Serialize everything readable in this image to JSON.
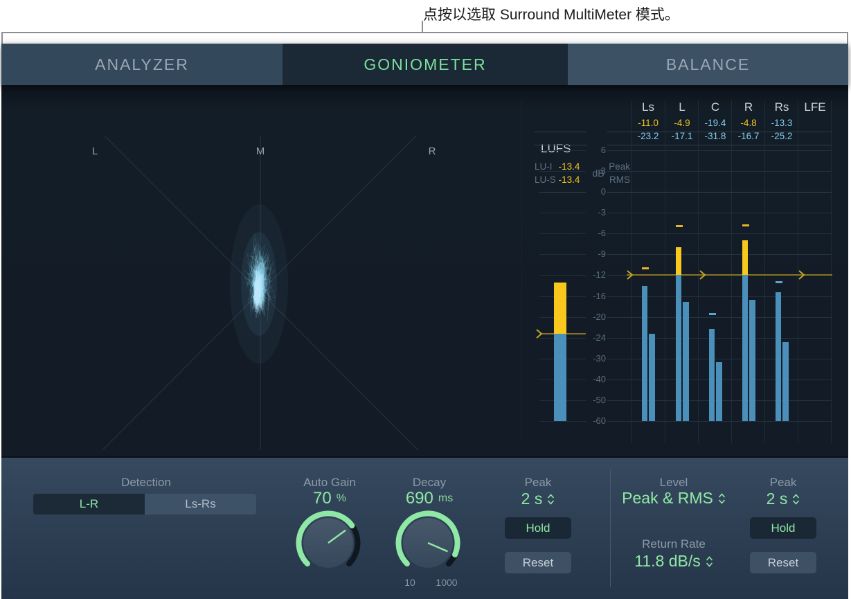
{
  "tooltip": {
    "text": "点按以选取 Surround MultiMeter 模式。"
  },
  "tabs": [
    {
      "label": "ANALYZER",
      "active": false
    },
    {
      "label": "GONIOMETER",
      "active": true
    },
    {
      "label": "BALANCE",
      "active": false
    }
  ],
  "goniometer": {
    "labels": [
      "L",
      "M",
      "R"
    ]
  },
  "lufs": {
    "title": "LUFS",
    "unit": "dB",
    "rows": [
      {
        "label": "LU-I",
        "value": "-13.4"
      },
      {
        "label": "LU-S",
        "value": "-13.4"
      }
    ],
    "bar": {
      "top_db": -13.4,
      "split_db": -23.3,
      "threshold_db": -23.3
    }
  },
  "meters": {
    "row_labels": [
      "Peak",
      "RMS"
    ],
    "target_db": -12,
    "ticks": [
      6,
      3,
      0,
      -3,
      -6,
      -9,
      -12,
      -16,
      -20,
      -24,
      -30,
      -40,
      -50,
      -60
    ],
    "channels": [
      {
        "name": "Ls",
        "peak": "-11.0",
        "rms": "-23.2",
        "bars": true,
        "bar_peak_db": -14.1,
        "bar_rms_db": -23.2,
        "hold_db": -11.0
      },
      {
        "name": "L",
        "peak": "-4.9",
        "rms": "-17.1",
        "bars": true,
        "bar_peak_db": -8.0,
        "bar_rms_db": -17.1,
        "hold_db": -4.9
      },
      {
        "name": "C",
        "peak": "-19.4",
        "rms": "-31.8",
        "bars": true,
        "bar_peak_db": -22.3,
        "bar_rms_db": -31.8,
        "hold_db": -19.4
      },
      {
        "name": "R",
        "peak": "-4.8",
        "rms": "-16.7",
        "bars": true,
        "bar_peak_db": -7.0,
        "bar_rms_db": -16.7,
        "hold_db": -4.8
      },
      {
        "name": "Rs",
        "peak": "-13.3",
        "rms": "-25.2",
        "bars": true,
        "bar_peak_db": -15.3,
        "bar_rms_db": -25.2,
        "hold_db": -13.3
      },
      {
        "name": "LFE",
        "peak": "",
        "rms": "",
        "bars": false
      }
    ]
  },
  "colors": {
    "accent_green": "#8fe8a5",
    "tab_green": "#7de29b",
    "bar_blue": "#4a90ba",
    "bar_yellow": "#f8c81c",
    "text_yellow": "#f2c41d",
    "text_cyan": "#82cdee",
    "hold_blue": "#5ba4cc",
    "target_line": "#857321",
    "scribble_blue": "#9fe0f7"
  },
  "controls": {
    "detection": {
      "label": "Detection",
      "options": [
        {
          "label": "L-R",
          "selected": true
        },
        {
          "label": "Ls-Rs",
          "selected": false
        }
      ]
    },
    "auto_gain": {
      "label": "Auto Gain",
      "value": "70",
      "unit": "%",
      "fraction": 0.7
    },
    "decay": {
      "label": "Decay",
      "value": "690",
      "unit": "ms",
      "fraction": 0.92,
      "scale_min": "10",
      "scale_max": "1000"
    },
    "peak_hold_left": {
      "label": "Peak",
      "value": "2 s",
      "hold_label": "Hold",
      "reset_label": "Reset"
    },
    "level": {
      "label": "Level",
      "value": "Peak & RMS"
    },
    "return_rate": {
      "label": "Return Rate",
      "value": "11.8 dB/s"
    },
    "peak_hold_right": {
      "label": "Peak",
      "value": "2 s",
      "hold_label": "Hold",
      "reset_label": "Reset"
    }
  }
}
